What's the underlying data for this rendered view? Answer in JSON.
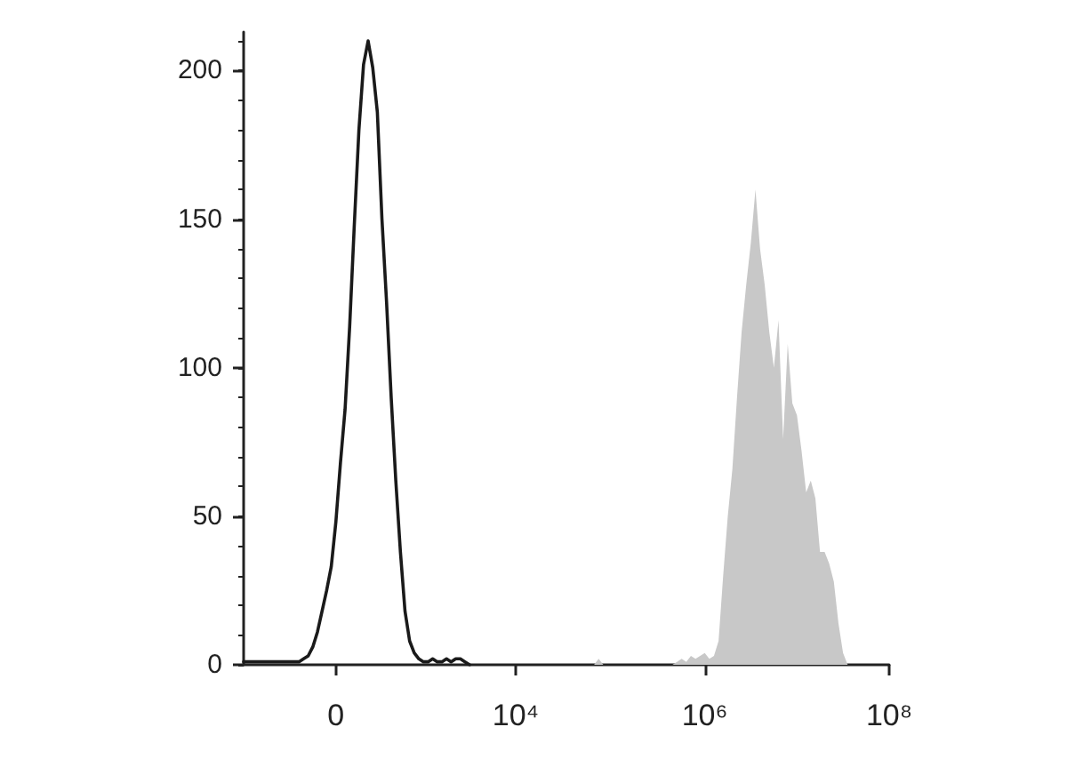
{
  "chart_data": {
    "type": "line",
    "categories": [
      null,
      null,
      null,
      null,
      null,
      null,
      null,
      null,
      null,
      null,
      null,
      null,
      null,
      null,
      null,
      null,
      null,
      null,
      null,
      null,
      "0",
      null,
      null,
      null,
      null,
      null,
      null,
      null,
      null,
      null,
      null,
      null,
      null,
      null,
      null,
      null,
      null,
      null,
      null,
      null,
      null,
      null,
      null,
      null,
      null,
      null,
      null,
      null,
      null,
      null,
      null,
      null,
      null,
      null,
      null,
      null,
      null,
      null,
      null,
      "10⁴",
      null,
      null,
      null,
      null,
      null,
      null,
      null,
      null,
      null,
      null,
      null,
      null,
      null,
      null,
      null,
      null,
      null,
      null,
      null,
      null,
      null,
      null,
      null,
      null,
      null,
      null,
      null,
      null,
      null,
      null,
      null,
      null,
      null,
      null,
      null,
      null,
      null,
      null,
      null,
      null,
      "10⁶",
      null,
      null,
      null,
      null,
      null,
      null,
      null,
      null,
      null,
      null,
      null,
      null,
      null,
      null,
      null,
      null,
      null,
      null,
      null,
      null,
      null,
      null,
      null,
      null,
      null,
      null,
      null,
      null,
      null,
      null,
      null,
      null,
      null,
      null,
      null,
      null,
      null,
      null,
      null,
      "10⁸"
    ],
    "series": [
      {
        "color": "#1a1a1a",
        "values": [
          1,
          1,
          1,
          1,
          1,
          1,
          1,
          1,
          1,
          1,
          1,
          1,
          1,
          2,
          3,
          6,
          11,
          18,
          25,
          33,
          48,
          68,
          86,
          114,
          148,
          180,
          202,
          210,
          201,
          186,
          150,
          122,
          90,
          62,
          38,
          18,
          8,
          4,
          2,
          1,
          1,
          2,
          1,
          1,
          2,
          1,
          2,
          2,
          1,
          0,
          null,
          null,
          null,
          null,
          null,
          null,
          null,
          null,
          null,
          null,
          null,
          null,
          null,
          null,
          null,
          null,
          null,
          null,
          null,
          null,
          null,
          null,
          null,
          null,
          null,
          null,
          null,
          null,
          null,
          null,
          null,
          null,
          null,
          null,
          null,
          null,
          null,
          null,
          null,
          null,
          null,
          null,
          null,
          null,
          null,
          null,
          null,
          null,
          null,
          null,
          null,
          null,
          null,
          null,
          null,
          null,
          null,
          null,
          null,
          null,
          null,
          null,
          null,
          null,
          null,
          null,
          null,
          null,
          null,
          null,
          null,
          null,
          null,
          null,
          null,
          null,
          null,
          null,
          null,
          null,
          null,
          null,
          null,
          null,
          null,
          null,
          null,
          null,
          null,
          null,
          null
        ]
      },
      {
        "type": "area",
        "color": "#c8c8c8",
        "values": [
          null,
          null,
          null,
          null,
          null,
          null,
          null,
          null,
          null,
          null,
          null,
          null,
          null,
          null,
          null,
          null,
          null,
          null,
          null,
          null,
          null,
          null,
          null,
          null,
          null,
          null,
          null,
          null,
          null,
          null,
          null,
          null,
          null,
          null,
          null,
          null,
          null,
          null,
          null,
          null,
          null,
          null,
          null,
          null,
          null,
          null,
          null,
          null,
          null,
          null,
          null,
          null,
          null,
          null,
          null,
          null,
          null,
          null,
          null,
          null,
          null,
          null,
          null,
          null,
          null,
          null,
          null,
          null,
          null,
          null,
          null,
          null,
          null,
          null,
          null,
          null,
          0,
          2,
          0,
          0,
          0,
          0,
          0,
          0,
          0,
          0,
          0,
          0,
          0,
          0,
          0,
          0,
          0,
          0,
          1,
          2,
          1,
          3,
          2,
          3,
          4,
          2,
          3,
          8,
          30,
          50,
          66,
          90,
          112,
          128,
          142,
          160,
          140,
          128,
          112,
          100,
          116,
          76,
          108,
          88,
          84,
          72,
          58,
          62,
          56,
          38,
          38,
          34,
          28,
          14,
          4,
          0,
          null,
          null,
          null,
          null,
          null,
          null,
          null,
          null,
          null
        ]
      }
    ],
    "ylim": [
      0,
      213
    ],
    "yticks": [
      0,
      50,
      100,
      150,
      200
    ]
  }
}
